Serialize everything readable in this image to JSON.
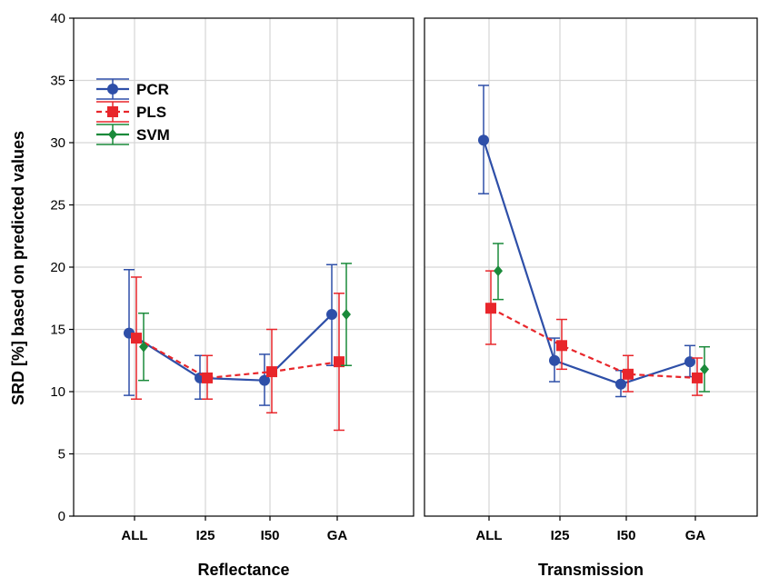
{
  "chart_data": {
    "type": "line",
    "ylabel": "SRD [%] based on predicted values",
    "ylim": [
      0,
      40
    ],
    "yticks": [
      0,
      5,
      10,
      15,
      20,
      25,
      30,
      35,
      40
    ],
    "categories": [
      "ALL",
      "I25",
      "I50",
      "GA"
    ],
    "legend": {
      "placement": "top-left"
    },
    "grid": true,
    "panels": [
      {
        "xlabel": "Reflectance",
        "series": [
          {
            "name": "PCR",
            "color": "#2e4fa8",
            "marker": "circle",
            "dash": false,
            "values": [
              14.7,
              11.1,
              10.9,
              16.2
            ],
            "lower": [
              9.7,
              9.4,
              8.9,
              12.1
            ],
            "upper": [
              19.8,
              12.9,
              13.0,
              20.2
            ]
          },
          {
            "name": "PLS",
            "color": "#e8262b",
            "marker": "square",
            "dash": true,
            "values": [
              14.3,
              11.1,
              11.6,
              12.4
            ],
            "lower": [
              9.4,
              9.4,
              8.3,
              6.9
            ],
            "upper": [
              19.2,
              12.9,
              15.0,
              17.9
            ]
          },
          {
            "name": "SVM",
            "color": "#1a8a3a",
            "marker": "diamond",
            "dash": false,
            "values": [
              13.6,
              null,
              null,
              16.2
            ],
            "lower": [
              10.9,
              null,
              null,
              12.1
            ],
            "upper": [
              16.3,
              null,
              null,
              20.3
            ]
          }
        ]
      },
      {
        "xlabel": "Transmission",
        "series": [
          {
            "name": "PCR",
            "color": "#2e4fa8",
            "marker": "circle",
            "dash": false,
            "values": [
              30.2,
              12.5,
              10.6,
              12.4
            ],
            "lower": [
              25.9,
              10.8,
              9.6,
              11.2
            ],
            "upper": [
              34.6,
              14.3,
              11.7,
              13.7
            ]
          },
          {
            "name": "PLS",
            "color": "#e8262b",
            "marker": "square",
            "dash": true,
            "values": [
              16.7,
              13.7,
              11.4,
              11.1
            ],
            "lower": [
              13.8,
              11.8,
              10.0,
              9.7
            ],
            "upper": [
              19.7,
              15.8,
              12.9,
              12.7
            ]
          },
          {
            "name": "SVM",
            "color": "#1a8a3a",
            "marker": "diamond",
            "dash": false,
            "values": [
              19.7,
              null,
              null,
              11.8
            ],
            "lower": [
              17.4,
              null,
              null,
              10.0
            ],
            "upper": [
              21.9,
              null,
              null,
              13.6
            ]
          }
        ]
      }
    ]
  }
}
